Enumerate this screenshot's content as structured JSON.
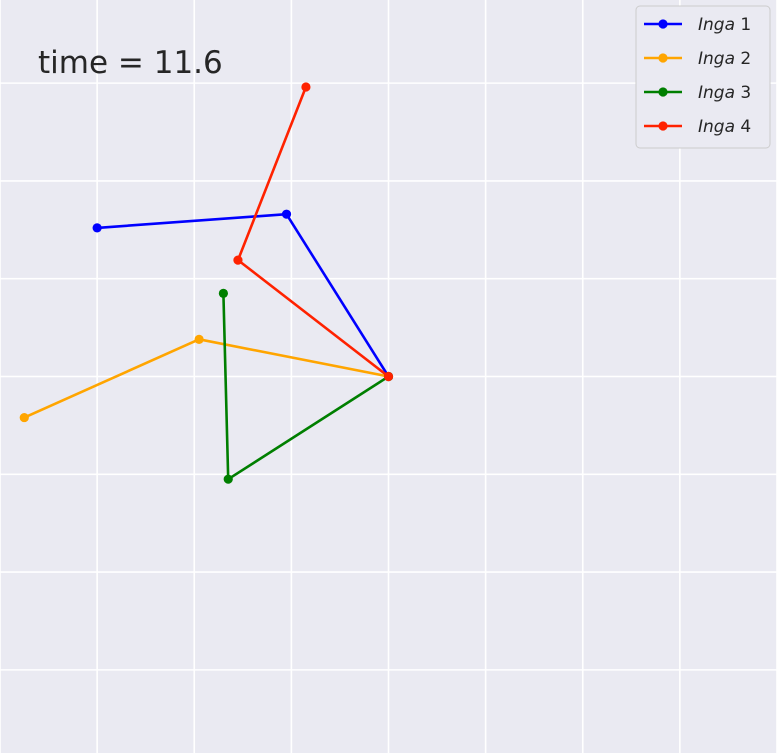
{
  "time_label": "time = 11.6",
  "chart_data": {
    "type": "line",
    "title": "",
    "xlabel": "",
    "ylabel": "",
    "xlim": [
      -4.0,
      4.0
    ],
    "ylim": [
      -3.85,
      3.85
    ],
    "grid": true,
    "legend_placement": "top-right",
    "tick_labels_visible": false,
    "series": [
      {
        "name": "Inga 1",
        "color": "#0000ff",
        "x": [
          0,
          -1.05,
          -3.0
        ],
        "y": [
          0,
          1.66,
          1.52
        ]
      },
      {
        "name": "Inga 2",
        "color": "#ffa500",
        "x": [
          0,
          -1.95,
          -3.75
        ],
        "y": [
          0,
          0.38,
          -0.42
        ]
      },
      {
        "name": "Inga 3",
        "color": "#007f00",
        "x": [
          0,
          -1.65,
          -1.7
        ],
        "y": [
          0,
          -1.05,
          0.85
        ]
      },
      {
        "name": "Inga 4",
        "color": "#ff2200",
        "x": [
          0,
          -1.55,
          -0.85
        ],
        "y": [
          0,
          1.19,
          2.96
        ]
      }
    ]
  }
}
